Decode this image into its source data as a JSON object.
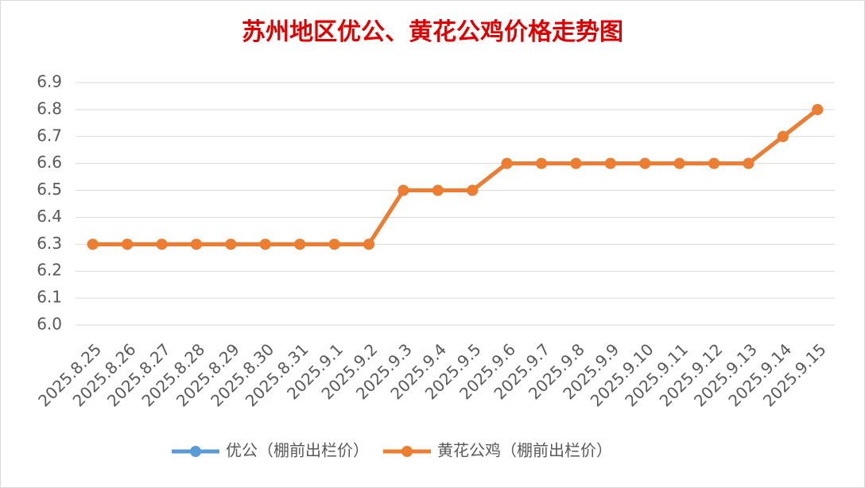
{
  "chart_data": {
    "type": "line",
    "title": "苏州地区优公、黄花公鸡价格走势图",
    "categories": [
      "2025.8.25",
      "2025.8.26",
      "2025.8.27",
      "2025.8.28",
      "2025.8.29",
      "2025.8.30",
      "2025.8.31",
      "2025.9.1",
      "2025.9.2",
      "2025.9.3",
      "2025.9.4",
      "2025.9.5",
      "2025.9.6",
      "2025.9.7",
      "2025.9.8",
      "2025.9.9",
      "2025.9.10",
      "2025.9.11",
      "2025.9.12",
      "2025.9.13",
      "2025.9.14",
      "2025.9.15"
    ],
    "series": [
      {
        "name": "优公（棚前出栏价）",
        "color": "#5b9bd5",
        "values": [
          6.3,
          6.3,
          6.3,
          6.3,
          6.3,
          6.3,
          6.3,
          6.3,
          6.3,
          6.5,
          6.5,
          6.5,
          6.6,
          6.6,
          6.6,
          6.6,
          6.6,
          6.6,
          6.6,
          6.6,
          6.7,
          6.8
        ]
      },
      {
        "name": "黄花公鸡（棚前出栏价）",
        "color": "#ed7d31",
        "values": [
          6.3,
          6.3,
          6.3,
          6.3,
          6.3,
          6.3,
          6.3,
          6.3,
          6.3,
          6.5,
          6.5,
          6.5,
          6.6,
          6.6,
          6.6,
          6.6,
          6.6,
          6.6,
          6.6,
          6.6,
          6.7,
          6.8
        ]
      }
    ],
    "ylim": [
      6.0,
      6.9
    ],
    "yticks": [
      {
        "value": 6.0,
        "label": "6.0"
      },
      6.1,
      6.2,
      6.3,
      6.4,
      6.5,
      6.6,
      6.7,
      6.8,
      6.9
    ],
    "grid": true,
    "legend": "bottom",
    "title_color": "#e00000"
  }
}
